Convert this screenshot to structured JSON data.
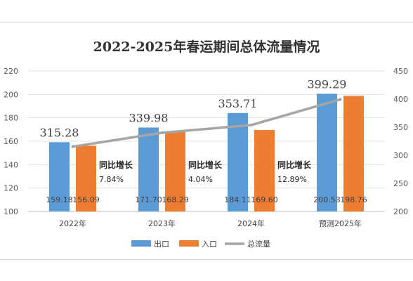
{
  "chart_data": {
    "type": "bar",
    "title": "2022-2025年春运期间总体流量情况",
    "categories": [
      "2022年",
      "2023年",
      "2024年",
      "预测2025年"
    ],
    "series": [
      {
        "name": "出口",
        "values": [
          159.18,
          171.7,
          184.11,
          200.53
        ],
        "labels": [
          "159.18",
          "171.70",
          "184.11",
          "200.53"
        ],
        "color": "#5b9bd5"
      },
      {
        "name": "入口",
        "values": [
          156.09,
          168.29,
          169.6,
          198.76
        ],
        "labels": [
          "156.09",
          "168.29",
          "169.60",
          "198.76"
        ],
        "color": "#ed7d31"
      }
    ],
    "line_series": {
      "name": "总流量",
      "values": [
        315.28,
        339.98,
        353.71,
        399.29
      ],
      "labels": [
        "315.28",
        "339.98",
        "353.71",
        "399.29"
      ],
      "axis": "right",
      "color": "#a5a5a5"
    },
    "growth_annotations": [
      {
        "label": "同比增长",
        "value": "7.84%"
      },
      {
        "label": "同比增长",
        "value": "4.04%"
      },
      {
        "label": "同比增长",
        "value": "12.89%"
      }
    ],
    "ylim_left": [
      100,
      220
    ],
    "yticks_left": [
      100,
      120,
      140,
      160,
      180,
      200,
      220
    ],
    "ylim_right": [
      200,
      450
    ],
    "yticks_right": [
      200,
      250,
      300,
      350,
      400,
      450
    ],
    "grid": true,
    "legend_position": "bottom"
  }
}
